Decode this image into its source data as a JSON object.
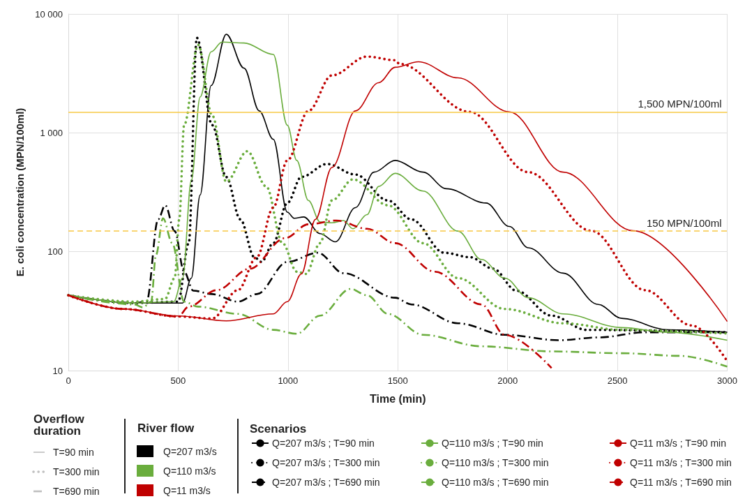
{
  "chart_data": {
    "type": "line",
    "xlabel": "Time (min)",
    "ylabel": "E. coli concentration (MPN/100ml)",
    "legend_title": "Scenarios",
    "xlim": [
      0,
      3000
    ],
    "xticks": [
      0,
      500,
      1000,
      1500,
      2000,
      2500,
      3000
    ],
    "ylim": [
      10,
      10000
    ],
    "yticks": [
      10,
      100,
      {
        "value": 1000,
        "label": "1 000"
      },
      {
        "value": 10000,
        "label": "10 000"
      }
    ],
    "log": "y",
    "grid": true,
    "legend": "bottom",
    "marker": "none",
    "annotations": [
      "Overflow duration",
      "T=90 min",
      "T=300 min",
      "T=690 min",
      "River flow",
      "Q=207 m3/s",
      "Q=110 m3/s",
      "Q=11 m3/s"
    ],
    "ref_lines": [
      {
        "axis": "y",
        "value": 1500,
        "label": "1,500 MPN/100ml",
        "color": "#f7c843",
        "line_style": "solid"
      },
      {
        "axis": "y",
        "value": 150,
        "label": "150 MPN/100ml",
        "color": "#f7c843",
        "line_style": "dashed"
      }
    ],
    "series": [
      {
        "name": "Q=207 m3/s ; T=90 min",
        "color": "#000000",
        "line_style": "solid",
        "x": [
          0,
          300,
          520,
          560,
          600,
          650,
          719,
          800,
          869,
          933,
          997,
          1029,
          1072,
          1146,
          1216,
          1307,
          1392,
          1488,
          1615,
          1721,
          1902,
          2008,
          2094,
          2253,
          2413,
          2519,
          2732,
          3000
        ],
        "values": [
          43,
          37,
          37,
          60,
          300,
          2500,
          6750,
          3500,
          1530,
          884,
          215,
          191,
          196,
          142,
          121,
          235,
          467,
          586,
          467,
          339,
          257,
          163,
          108,
          66,
          36,
          27.5,
          22,
          21
        ]
      },
      {
        "name": "Q=207 m3/s ; T=300 min",
        "color": "#000000",
        "line_style": "dotted",
        "x": [
          0,
          300,
          500,
          548,
          585,
          655,
          719,
          783,
          847,
          879,
          933,
          997,
          1061,
          1178,
          1307,
          1455,
          1562,
          1711,
          1828,
          1934,
          2040,
          2200,
          2360,
          3000
        ],
        "values": [
          43,
          37,
          38,
          118,
          6300,
          1160,
          425,
          187,
          90,
          82,
          118,
          257,
          426,
          547,
          446,
          270,
          187,
          98,
          90,
          72,
          47,
          29,
          22,
          21
        ]
      },
      {
        "name": "Q=207 m3/s ; T=690 min",
        "color": "#000000",
        "line_style": "dashdot",
        "x": [
          0,
          300,
          356,
          409,
          441,
          484,
          527,
          569,
          655,
          772,
          858,
          997,
          1136,
          1253,
          1488,
          1562,
          1774,
          1987,
          2232,
          2413,
          2626,
          3000
        ],
        "values": [
          43,
          37,
          38,
          187,
          246,
          149,
          68,
          47,
          44,
          38,
          44,
          82,
          98,
          66,
          41,
          36,
          25,
          20,
          18,
          19,
          21,
          21
        ]
      },
      {
        "name": "Q=110 m3/s ; T=90 min",
        "color": "#6aad3d",
        "line_style": "solid",
        "x": [
          0,
          300,
          480,
          520,
          560,
          600,
          650,
          700,
          800,
          933,
          997,
          1040,
          1093,
          1146,
          1200,
          1253,
          1296,
          1360,
          1413,
          1488,
          1615,
          1774,
          1881,
          1987,
          2094,
          2253,
          2519,
          2732,
          3000
        ],
        "values": [
          43,
          37,
          38,
          60,
          400,
          2000,
          4800,
          5800,
          5700,
          4570,
          1160,
          586,
          270,
          178,
          175,
          183,
          156,
          205,
          354,
          456,
          324,
          149,
          86,
          60,
          41,
          30,
          23,
          21,
          18
        ]
      },
      {
        "name": "Q=110 m3/s ; T=300 min",
        "color": "#6aad3d",
        "line_style": "dotted",
        "x": [
          0,
          300,
          440,
          484,
          505,
          527,
          591,
          655,
          719,
          815,
          901,
          975,
          1040,
          1082,
          1146,
          1200,
          1296,
          1455,
          1615,
          1774,
          1987,
          2253,
          2519,
          3000
        ],
        "values": [
          43,
          38,
          40,
          60,
          187,
          1160,
          5500,
          1400,
          388,
          700,
          354,
          118,
          68,
          65,
          118,
          270,
          406,
          246,
          118,
          60,
          33,
          25,
          22,
          20.5
        ]
      },
      {
        "name": "Q=110 m3/s ; T=690 min",
        "color": "#6aad3d",
        "line_style": "dashdot",
        "x": [
          0,
          300,
          340,
          377,
          399,
          431,
          473,
          527,
          591,
          772,
          933,
          1040,
          1146,
          1285,
          1360,
          1455,
          1615,
          1881,
          2200,
          2519,
          2785,
          3000
        ],
        "values": [
          43,
          36,
          34,
          38,
          94,
          191,
          118,
          38,
          34.5,
          30,
          22,
          20.4,
          29,
          48.6,
          43,
          30,
          20,
          16,
          14.5,
          14,
          13.3,
          10.8
        ]
      },
      {
        "name": "Q=11 m3/s ; T=90 min",
        "color": "#c00000",
        "line_style": "solid",
        "x": [
          0,
          250,
          505,
          719,
          933,
          997,
          1061,
          1125,
          1200,
          1307,
          1413,
          1488,
          1594,
          1774,
          2008,
          2253,
          2572,
          3000
        ],
        "values": [
          43,
          33,
          28.8,
          26.2,
          30,
          38,
          65,
          187,
          511,
          1530,
          2640,
          3560,
          3960,
          2900,
          1500,
          467,
          150,
          25.9
        ]
      },
      {
        "name": "Q=11 m3/s ; T=300 min",
        "color": "#c00000",
        "line_style": "dotted",
        "x": [
          0,
          250,
          500,
          655,
          772,
          858,
          933,
          997,
          1093,
          1200,
          1360,
          1488,
          1508,
          1828,
          2094,
          2381,
          2626,
          2838,
          3000
        ],
        "values": [
          43,
          33,
          28.5,
          27.4,
          47.5,
          90,
          235,
          586,
          1530,
          3040,
          4380,
          4080,
          3800,
          1500,
          467,
          150,
          47.5,
          24,
          12
        ]
      },
      {
        "name": "Q=11 m3/s ; T=690 min",
        "color": "#c00000",
        "line_style": "dashdot",
        "x": [
          0,
          250,
          500,
          548,
          676,
          826,
          986,
          1093,
          1221,
          1360,
          1488,
          1668,
          1881,
          1987,
          2200
        ],
        "values": [
          43,
          33,
          28.5,
          34.5,
          47.5,
          72,
          130,
          170,
          183,
          156,
          118,
          68,
          36,
          20,
          10.5
        ]
      }
    ]
  }
}
